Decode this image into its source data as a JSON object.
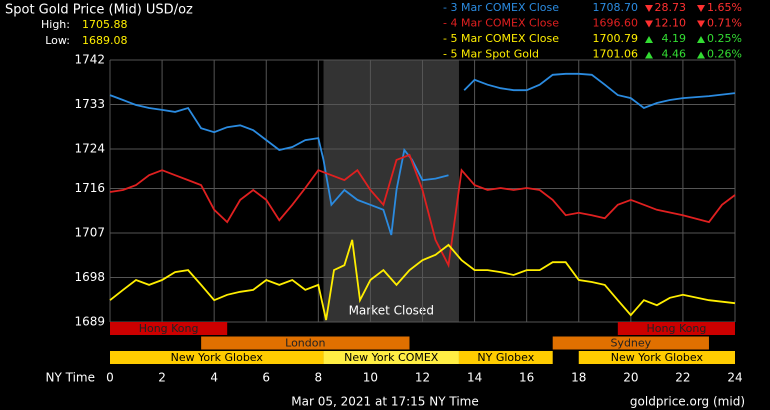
{
  "chart_data": {
    "type": "line",
    "title": "Spot Gold Price (Mid) USD/oz",
    "high_label": "High:",
    "high": 1705.88,
    "low_label": "Low:",
    "low": 1689.08,
    "legend": [
      {
        "name": "- 3 Mar COMEX Close",
        "color": "#2b8be0",
        "price": "1708.70",
        "change": "28.73",
        "pct": "1.65%",
        "direction": "down"
      },
      {
        "name": "- 4 Mar COMEX Close",
        "color": "#e02020",
        "price": "1696.60",
        "change": "12.10",
        "pct": "0.71%",
        "direction": "down"
      },
      {
        "name": "- 5 Mar COMEX Close",
        "color": "#ffee00",
        "price": "1700.79",
        "change": "4.19",
        "pct": "0.25%",
        "direction": "up"
      },
      {
        "name": "- 5 Mar Spot Gold",
        "color": "#ffee00",
        "price": "1701.06",
        "change": "4.46",
        "pct": "0.26%",
        "direction": "up"
      }
    ],
    "series": [
      {
        "color": "#2b8be0",
        "x": [
          0,
          0.5,
          1,
          1.5,
          2,
          2.5,
          3,
          3.5,
          4,
          4.5,
          5,
          5.5,
          6,
          6.5,
          7,
          7.5,
          8,
          8.2,
          8.5,
          9,
          9.5,
          10,
          10.5,
          10.8,
          11,
          11.3,
          11.6,
          12,
          12.5,
          13,
          13.4,
          13.6,
          14,
          14.5,
          15,
          15.5,
          16,
          16.5,
          17,
          17.5,
          18,
          18.5,
          19,
          19.5,
          20,
          20.5,
          21,
          21.5,
          22,
          23,
          24
        ],
        "values": [
          1734.9,
          1733.9,
          1732.9,
          1732.3,
          1731.9,
          1731.5,
          1732.3,
          1728.2,
          1727.4,
          1728.4,
          1728.8,
          1727.8,
          1725.8,
          1723.8,
          1724.4,
          1725.8,
          1726.2,
          1721.8,
          1712.7,
          1715.7,
          1713.7,
          1712.7,
          1711.7,
          1706.6,
          1715.7,
          1723.8,
          1721.8,
          1717.7,
          1718.0,
          1718.7,
          null,
          1735.9,
          1738,
          1737,
          1736.3,
          1735.9,
          1735.9,
          1737,
          1739,
          1739.2,
          1739.2,
          1739,
          1737,
          1734.9,
          1734.3,
          1732.3,
          1733.3,
          1733.9,
          1734.3,
          1734.7,
          1735.3
        ]
      },
      {
        "color": "#e02020",
        "x": [
          0,
          0.5,
          1,
          1.5,
          2,
          2.5,
          3,
          3.5,
          4,
          4.5,
          5,
          5.5,
          6,
          6.5,
          7,
          7.5,
          8,
          8.5,
          9,
          9.5,
          10,
          10.5,
          11,
          11.5,
          12,
          12.5,
          13,
          13.5,
          14,
          14.5,
          15,
          15.5,
          16,
          16.5,
          17,
          17.5,
          18,
          18.5,
          19,
          19.5,
          20,
          20.5,
          21,
          22,
          23,
          23.5,
          24
        ],
        "values": [
          1715.3,
          1715.7,
          1716.7,
          1718.7,
          1719.7,
          1718.7,
          1717.7,
          1716.7,
          1711.7,
          1709.2,
          1713.7,
          1715.7,
          1713.7,
          1709.6,
          1712.7,
          1716.1,
          1719.7,
          1718.7,
          1717.7,
          1719.7,
          1715.7,
          1712.7,
          1721.8,
          1722.8,
          1715.7,
          1705.6,
          1700.5,
          1719.7,
          1716.7,
          1715.7,
          1716.1,
          1715.7,
          1716.1,
          1715.7,
          1713.7,
          1710.6,
          1711.1,
          1710.6,
          1710,
          1712.7,
          1713.7,
          1712.7,
          1711.7,
          1710.6,
          1709.2,
          1712.7,
          1714.7
        ]
      },
      {
        "color": "#ffee00",
        "x": [
          0,
          0.5,
          1,
          1.5,
          2,
          2.5,
          3,
          3.5,
          4,
          4.5,
          5,
          5.5,
          6,
          6.5,
          7,
          7.5,
          8,
          8.3,
          8.6,
          9,
          9.3,
          9.6,
          10,
          10.5,
          11,
          11.5,
          12,
          12.5,
          13,
          13.5,
          14,
          14.5,
          15,
          15.5,
          16,
          16.5,
          17,
          17.5,
          18,
          18.5,
          19,
          19.5,
          20,
          20.5,
          21,
          21.5,
          22,
          23,
          24
        ],
        "values": [
          1693.4,
          1695.5,
          1697.5,
          1696.5,
          1697.5,
          1699.1,
          1699.5,
          1696.5,
          1693.4,
          1694.5,
          1695.1,
          1695.5,
          1697.5,
          1696.5,
          1697.5,
          1695.5,
          1696.5,
          1689.4,
          1699.5,
          1700.5,
          1705.6,
          1693.4,
          1697.5,
          1699.5,
          1696.5,
          1699.5,
          1701.5,
          1702.6,
          1704.6,
          1701.5,
          1699.5,
          1699.5,
          1699.1,
          1698.5,
          1699.5,
          1699.5,
          1701.1,
          1701.1,
          1697.5,
          1697.1,
          1696.5,
          1693.4,
          1690.4,
          1693.4,
          1692.4,
          1693.9,
          1694.5,
          1693.4,
          1692.8
        ]
      }
    ],
    "closed": {
      "label": "Market Closed",
      "start": 8.2,
      "end": 13.4
    },
    "sessions": [
      {
        "label": "Hong Kong",
        "start": 0,
        "end": 4.5,
        "row": 0,
        "color": "#cc0000"
      },
      {
        "label": "Hong Kong",
        "start": 19.5,
        "end": 24,
        "row": 0,
        "color": "#cc0000"
      },
      {
        "label": "London",
        "start": 3.5,
        "end": 11.5,
        "row": 1,
        "color": "#e07000"
      },
      {
        "label": "Sydney",
        "start": 17,
        "end": 23,
        "row": 1,
        "color": "#e07000"
      },
      {
        "label": "New York Globex",
        "start": 0,
        "end": 8.2,
        "row": 2,
        "color": "#ffcc00"
      },
      {
        "label": "New York COMEX",
        "start": 8.2,
        "end": 13.4,
        "row": 2,
        "color": "#ffee44"
      },
      {
        "label": "NY Globex",
        "start": 13.4,
        "end": 17,
        "row": 2,
        "color": "#ffcc00"
      },
      {
        "label": "New York Globex",
        "start": 18,
        "end": 24,
        "row": 2,
        "color": "#ffcc00"
      }
    ],
    "xlabel": "NY Time",
    "xlim": [
      0,
      24
    ],
    "xticks": [
      0,
      2,
      4,
      6,
      8,
      10,
      12,
      14,
      16,
      18,
      20,
      22,
      24
    ],
    "ylim": [
      1689,
      1742
    ],
    "yticks": [
      1689,
      1698,
      1707,
      1716,
      1724,
      1733,
      1742
    ],
    "grid": true,
    "footer": "Mar 05, 2021 at 17:15 NY Time",
    "source": "goldprice.org (mid)"
  }
}
